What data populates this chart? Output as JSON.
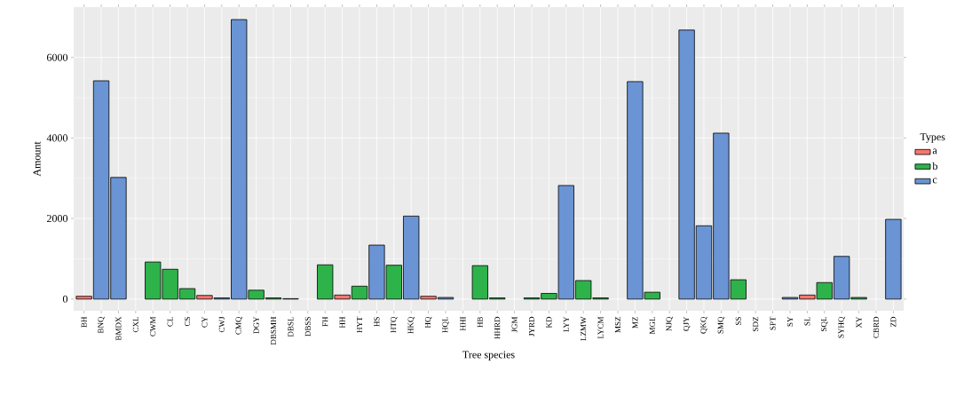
{
  "chart_data": {
    "type": "bar",
    "xlabel": "Tree species",
    "ylabel": "Amount",
    "legend_title": "Types",
    "categories": [
      "BH",
      "BNQ",
      "BMDX",
      "CXL",
      "CWM",
      "CL",
      "CS",
      "CY",
      "CWJ",
      "CMQ",
      "DGY",
      "DBSMH",
      "DBSL",
      "DBSS",
      "FH",
      "HH",
      "HYT",
      "HS",
      "HTQ",
      "HKQ",
      "HQ",
      "HQL",
      "HHI",
      "HB",
      "HHRD",
      "JGM",
      "JYRD",
      "KD",
      "LYY",
      "LZMW",
      "LYCM",
      "MSZ",
      "MZ",
      "MGL",
      "NJQ",
      "QJY",
      "QKQ",
      "SMQ",
      "SS",
      "SDZ",
      "SPT",
      "SY",
      "SL",
      "SQL",
      "SYHQ",
      "XY",
      "CBRD",
      "ZD"
    ],
    "series": [
      {
        "name": "a",
        "color": "#f8766d",
        "values": [
          70,
          null,
          null,
          null,
          null,
          null,
          null,
          90,
          null,
          null,
          null,
          null,
          null,
          null,
          null,
          100,
          null,
          null,
          null,
          null,
          70,
          null,
          null,
          null,
          null,
          null,
          null,
          null,
          null,
          null,
          null,
          null,
          null,
          null,
          null,
          null,
          null,
          null,
          null,
          null,
          null,
          null,
          100,
          null,
          null,
          null,
          null,
          null
        ]
      },
      {
        "name": "b",
        "color": "#2db34a",
        "values": [
          null,
          null,
          null,
          null,
          920,
          740,
          260,
          null,
          null,
          null,
          220,
          30,
          null,
          null,
          850,
          null,
          320,
          null,
          840,
          null,
          null,
          null,
          null,
          830,
          30,
          null,
          30,
          140,
          null,
          460,
          30,
          null,
          null,
          170,
          null,
          null,
          null,
          null,
          480,
          null,
          null,
          null,
          null,
          410,
          null,
          40,
          null,
          null
        ]
      },
      {
        "name": "c",
        "color": "#6a94d4",
        "values": [
          null,
          5420,
          3020,
          null,
          null,
          null,
          null,
          null,
          30,
          6940,
          null,
          null,
          10,
          null,
          null,
          null,
          null,
          1340,
          null,
          2060,
          null,
          40,
          null,
          null,
          null,
          null,
          null,
          null,
          2820,
          null,
          null,
          null,
          5400,
          null,
          null,
          6680,
          1820,
          4120,
          null,
          null,
          null,
          40,
          null,
          null,
          1060,
          null,
          null,
          1980
        ]
      }
    ],
    "ylim": [
      -290,
      7250
    ],
    "yticks": [
      0,
      2000,
      4000,
      6000
    ],
    "grid": true,
    "legend": "right"
  }
}
